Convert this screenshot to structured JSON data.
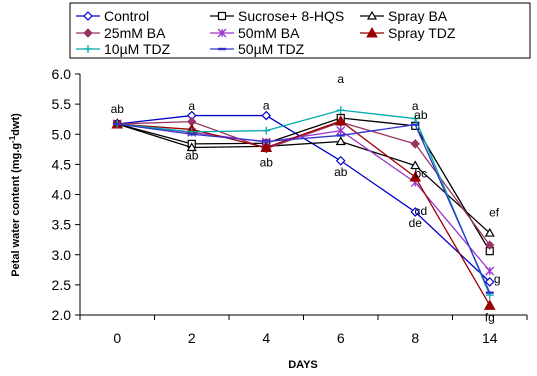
{
  "chart_data": {
    "type": "line",
    "title": "",
    "xlabel": "DAYS",
    "ylabel_main": "Petal water content (mg.g",
    "ylabel_sup": "-1",
    "ylabel_tail": "dwt)",
    "categories": [
      "0",
      "2",
      "4",
      "6",
      "8",
      "14"
    ],
    "ylim": [
      2.0,
      6.0
    ],
    "yticks": [
      "2.0",
      "2.5",
      "3.0",
      "3.5",
      "4.0",
      "4.5",
      "5.0",
      "5.5",
      "6.0"
    ],
    "grid": false,
    "legend_position": "top",
    "series": [
      {
        "name": "Control",
        "color": "#0000CC",
        "marker": "diamond-open",
        "values": [
          5.17,
          5.31,
          5.31,
          4.56,
          3.71,
          2.55
        ]
      },
      {
        "name": "Sucrose+ 8-HQS",
        "color": "#000000",
        "marker": "square-open",
        "values": [
          5.17,
          4.84,
          4.85,
          5.27,
          5.14,
          3.06
        ]
      },
      {
        "name": "Spray BA",
        "color": "#000000",
        "marker": "triangle-open",
        "values": [
          5.17,
          4.78,
          4.8,
          4.88,
          4.48,
          3.36
        ]
      },
      {
        "name": "25mM BA",
        "color": "#993366",
        "marker": "diamond-filled",
        "values": [
          5.17,
          5.21,
          4.76,
          5.2,
          4.84,
          3.16
        ]
      },
      {
        "name": "50mM BA",
        "color": "#9933CC",
        "marker": "asterisk",
        "values": [
          5.17,
          5.03,
          4.87,
          5.06,
          4.2,
          2.73
        ]
      },
      {
        "name": "Spray TDZ",
        "color": "#990000",
        "marker": "triangle-filled",
        "values": [
          5.17,
          5.08,
          4.78,
          5.22,
          4.29,
          2.16
        ]
      },
      {
        "name": "10µM TDZ",
        "color": "#00AAAA",
        "marker": "plus",
        "values": [
          5.17,
          5.04,
          5.06,
          5.4,
          5.26,
          2.33
        ]
      },
      {
        "name": "50µM TDZ",
        "color": "#3333CC",
        "marker": "dash",
        "values": [
          5.17,
          5.0,
          4.88,
          4.98,
          5.16,
          2.37
        ]
      }
    ],
    "annotations": [
      {
        "text": "ab",
        "x": "0",
        "y": 5.42
      },
      {
        "text": "a",
        "x": "2",
        "y": 5.47
      },
      {
        "text": "ab",
        "x": "2",
        "y": 4.65
      },
      {
        "text": "a",
        "x": "4",
        "y": 5.48
      },
      {
        "text": "ab",
        "x": "4",
        "y": 4.53
      },
      {
        "text": "a",
        "x": "6",
        "y": 5.92
      },
      {
        "text": "ab",
        "x": "6",
        "y": 4.37
      },
      {
        "text": "a",
        "x": "8",
        "y": 5.47
      },
      {
        "text": "ab",
        "x": "8.45",
        "y": 5.32
      },
      {
        "text": "bc",
        "x": "8.45",
        "y": 4.35
      },
      {
        "text": "cd",
        "x": "8.45",
        "y": 3.73
      },
      {
        "text": "de",
        "x": "8",
        "y": 3.53
      },
      {
        "text": "ef",
        "x": "14.35",
        "y": 3.7
      },
      {
        "text": "g",
        "x": "14.6",
        "y": 2.6
      },
      {
        "text": "fg",
        "x": "14",
        "y": 1.96
      }
    ]
  }
}
